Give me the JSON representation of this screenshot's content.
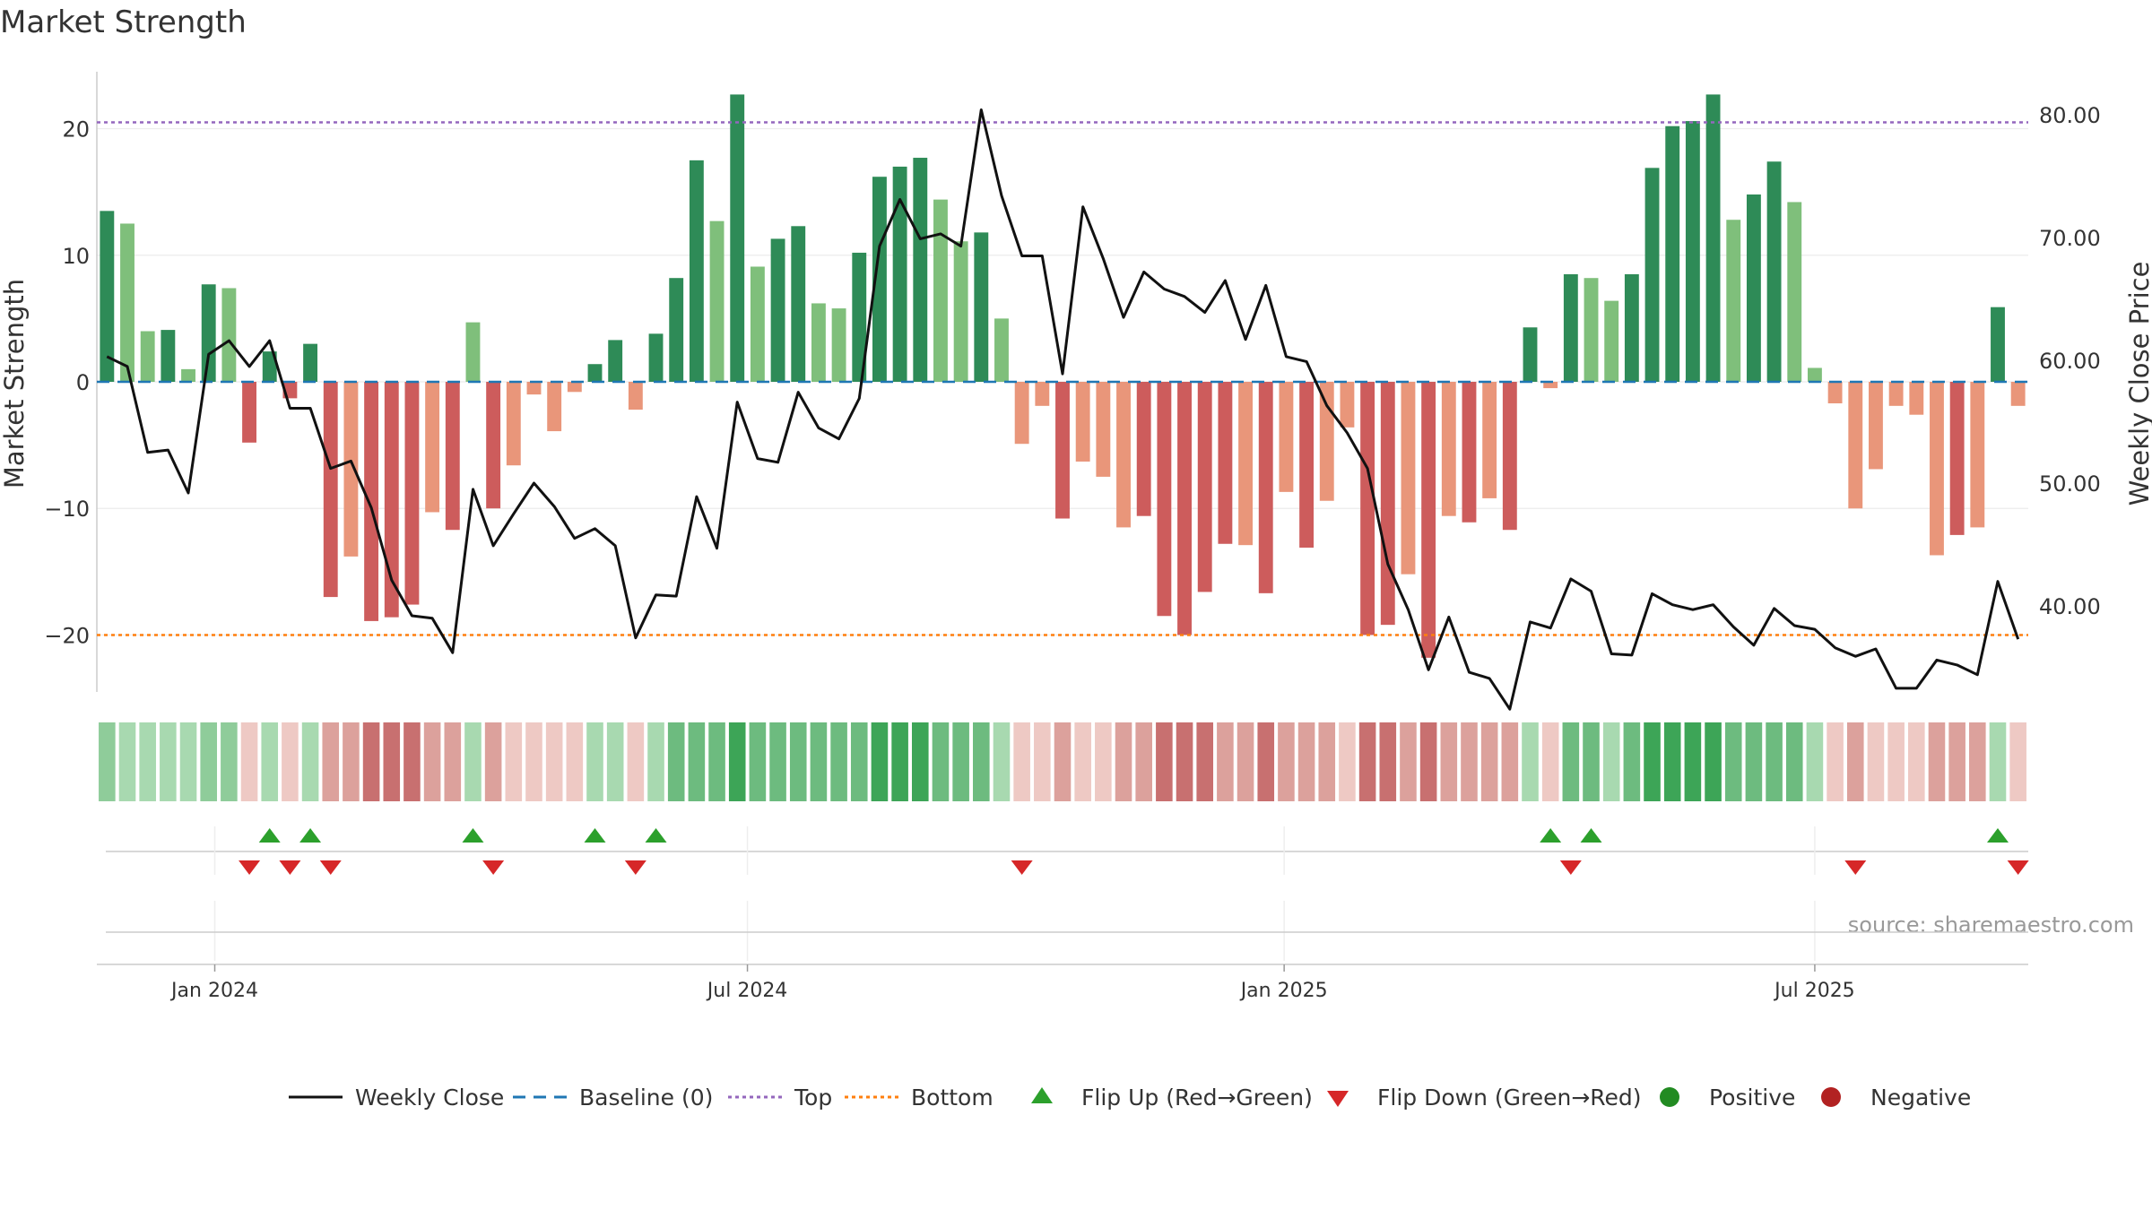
{
  "colors": {
    "green_strong": "#2e8b57",
    "green_light": "#7fbf7b",
    "red_strong": "#cd5c5c",
    "red_light": "#e9967a",
    "price_line": "#111111",
    "baseline": "#1f77b4",
    "top": "#9467bd",
    "bottom": "#ff7f0e",
    "flip_up": "#2ca02c",
    "flip_down": "#d62728",
    "positive": "#228b22",
    "negative": "#b22222"
  },
  "chart_data": {
    "type": "bar",
    "title": "Market Strength",
    "ylabel_left": "Market Strength",
    "ylabel_right": "Weekly Close Price",
    "source": "source: sharemaestro.com",
    "ylim_left": [
      -24.5,
      24.5
    ],
    "ylim_right": [
      33.0,
      83.5
    ],
    "left_ticks": [
      {
        "v": 20,
        "label": "20"
      },
      {
        "v": 10,
        "label": "10"
      },
      {
        "v": 0,
        "label": "0"
      },
      {
        "v": -10,
        "label": "−10"
      },
      {
        "v": -20,
        "label": "−20"
      }
    ],
    "right_ticks": [
      {
        "v": 80,
        "label": "80.00"
      },
      {
        "v": 70,
        "label": "70.00"
      },
      {
        "v": 60,
        "label": "60.00"
      },
      {
        "v": 50,
        "label": "50.00"
      },
      {
        "v": 40,
        "label": "40.00"
      }
    ],
    "x_ticks": [
      {
        "week": 5.3,
        "label": "Jan 2024"
      },
      {
        "week": 31.5,
        "label": "Jul 2024"
      },
      {
        "week": 57.9,
        "label": "Jan 2025"
      },
      {
        "week": 84.0,
        "label": "Jul 2025"
      }
    ],
    "top_level": 20.5,
    "bottom_level": -20,
    "strength": [
      13.5,
      12.5,
      4,
      4.1,
      1,
      7.7,
      7.4,
      -4.8,
      2.4,
      -1.3,
      3,
      -17,
      -13.8,
      -18.9,
      -18.6,
      -17.6,
      -10.3,
      -11.7,
      4.7,
      -10,
      -6.6,
      -1,
      -3.9,
      -0.8,
      1.4,
      3.3,
      -2.2,
      3.8,
      8.2,
      17.5,
      12.7,
      22.7,
      9.1,
      11.3,
      12.3,
      6.2,
      5.8,
      10.2,
      16.2,
      17,
      17.7,
      14.4,
      11.1,
      11.8,
      5,
      -4.9,
      -1.9,
      -10.8,
      -6.3,
      -7.5,
      -11.5,
      -10.6,
      -18.5,
      -20,
      -16.6,
      -12.8,
      -12.9,
      -16.7,
      -8.7,
      -13.1,
      -9.4,
      -3.6,
      -20,
      -19.2,
      -15.2,
      -21.8,
      -10.6,
      -11.1,
      -9.2,
      -11.7,
      4.3,
      -0.5,
      8.5,
      8.2,
      6.4,
      8.5,
      16.9,
      20.2,
      20.6,
      22.7,
      12.8,
      14.8,
      17.4,
      14.2,
      1.1,
      -1.7,
      -10,
      -6.9,
      -1.9,
      -2.6,
      -13.7,
      -12.1,
      -11.5,
      5.9,
      -1.9
    ],
    "weekly_close": [
      60.3,
      59.5,
      52.5,
      52.7,
      49.2,
      60.5,
      61.6,
      59.5,
      61.6,
      56.1,
      56.1,
      51.2,
      51.8,
      48,
      42.1,
      39.2,
      39,
      36.2,
      49.5,
      44.9,
      47.5,
      50,
      48.1,
      45.5,
      46.3,
      44.9,
      37.4,
      40.9,
      40.8,
      48.9,
      44.7,
      56.6,
      52,
      51.7,
      57.4,
      54.5,
      53.6,
      56.9,
      69.3,
      73.1,
      69.9,
      70.3,
      69.3,
      80.4,
      73.4,
      68.5,
      68.5,
      58.9,
      72.5,
      68.3,
      63.5,
      67.2,
      65.8,
      65.2,
      63.9,
      66.5,
      61.7,
      66.1,
      60.3,
      59.9,
      56.3,
      54.1,
      51.2,
      43.4,
      39.7,
      34.8,
      39.1,
      34.6,
      34.1,
      31.6,
      38.7,
      38.2,
      42.2,
      41.2,
      36.1,
      36,
      41,
      40.1,
      39.7,
      40.1,
      38.3,
      36.8,
      39.8,
      38.4,
      38.1,
      36.6,
      35.9,
      36.5,
      33.3,
      33.3,
      35.6,
      35.2,
      34.4,
      42,
      37.3
    ],
    "band_levels": [
      1,
      1,
      1,
      1,
      1,
      1,
      1,
      -1,
      1,
      -1,
      1,
      -2,
      -2,
      -3,
      -3,
      -3,
      -2,
      -2,
      1,
      -2,
      -1,
      -1,
      -1,
      -1,
      1,
      1,
      -1,
      1,
      2,
      2,
      2,
      3,
      2,
      2,
      2,
      2,
      2,
      2,
      3,
      3,
      3,
      2,
      2,
      2,
      1,
      -1,
      -1,
      -2,
      -1,
      -1,
      -2,
      -2,
      -3,
      -3,
      -3,
      -2,
      -2,
      -3,
      -2,
      -2,
      -2,
      -1,
      -3,
      -3,
      -2,
      -3,
      -2,
      -2,
      -2,
      -2,
      1,
      -1,
      2,
      2,
      1,
      2,
      3,
      3,
      3,
      3,
      2,
      2,
      2,
      2,
      1,
      -1,
      -2,
      -1,
      -1,
      -1,
      -2,
      -2,
      -2,
      1,
      -1
    ],
    "flip_up_weeks": [
      8,
      10,
      18,
      24,
      27,
      71,
      73,
      93
    ],
    "flip_down_weeks": [
      7,
      9,
      11,
      19,
      26,
      45,
      72,
      86,
      94
    ],
    "legend": [
      {
        "kind": "line",
        "label": "Weekly Close"
      },
      {
        "kind": "dashed",
        "label": "Baseline (0)"
      },
      {
        "kind": "dotted-top",
        "label": "Top"
      },
      {
        "kind": "dotted-bottom",
        "label": "Bottom"
      },
      {
        "kind": "tri-up",
        "label": "Flip Up (Red→Green)"
      },
      {
        "kind": "tri-down",
        "label": "Flip Down (Green→Red)"
      },
      {
        "kind": "dot-pos",
        "label": "Positive"
      },
      {
        "kind": "dot-neg",
        "label": "Negative"
      }
    ]
  }
}
